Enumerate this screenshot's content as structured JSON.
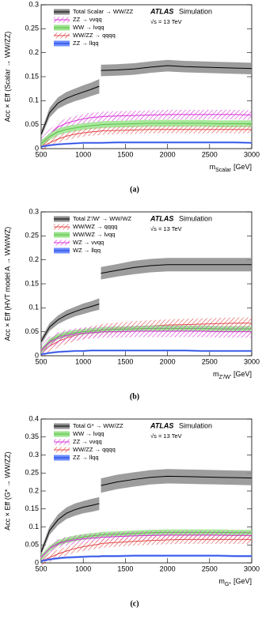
{
  "chart_data": [
    {
      "type": "line",
      "caption": "(a)",
      "ylabel": "Acc × Eff (Scalar → WW/ZZ)",
      "xlabel": "m",
      "xlabel_sub": "Scalar",
      "xlabel_unit": "[GeV]",
      "atlas": "ATLAS",
      "atlas_tag": "Simulation",
      "energy": "√s = 13 TeV",
      "xlim": [
        500,
        3000
      ],
      "xticks": [
        500,
        1000,
        1500,
        2000,
        2500,
        3000
      ],
      "ylim": [
        0,
        0.3
      ],
      "yticks": [
        0,
        0.05,
        0.1,
        0.15,
        0.2,
        0.25,
        0.3
      ],
      "x": [
        500,
        600,
        700,
        800,
        900,
        1000,
        1100,
        1190,
        1200,
        1210,
        1400,
        1600,
        1800,
        2000,
        2200,
        2400,
        2600,
        2800,
        3000
      ],
      "series": [
        {
          "name": "Total Scalar → WW/ZZ",
          "color": "#000000",
          "band_color": "#8c8c8c",
          "hatch": false,
          "values": [
            0.03,
            0.075,
            0.095,
            0.105,
            0.112,
            0.118,
            0.124,
            0.13,
            null,
            0.163,
            0.164,
            0.166,
            0.17,
            0.173,
            0.171,
            0.17,
            0.169,
            0.168,
            0.167
          ],
          "errors": [
            0.006,
            0.01,
            0.012,
            0.013,
            0.013,
            0.014,
            0.014,
            0.015,
            null,
            0.012,
            0.012,
            0.012,
            0.012,
            0.012,
            0.012,
            0.012,
            0.012,
            0.012,
            0.012
          ]
        },
        {
          "name": "ZZ → ννqq",
          "color": "#d633d6",
          "band_color": "#d633d6",
          "hatch": true,
          "values": [
            0.012,
            0.03,
            0.045,
            0.053,
            0.058,
            0.062,
            0.065,
            0.066,
            0.066,
            0.067,
            0.068,
            0.069,
            0.07,
            0.071,
            0.071,
            0.071,
            0.071,
            0.071,
            0.07
          ],
          "errors": [
            0.01,
            0.01,
            0.01,
            0.01,
            0.01,
            0.01,
            0.01,
            0.01,
            0.01,
            0.01,
            0.01,
            0.01,
            0.01,
            0.01,
            0.01,
            0.01,
            0.01,
            0.01,
            0.01
          ]
        },
        {
          "name": "WW → lνqq",
          "color": "#5cc24a",
          "band_color": "#9be38d",
          "hatch": false,
          "values": [
            0.01,
            0.025,
            0.035,
            0.04,
            0.043,
            0.046,
            0.048,
            0.049,
            0.05,
            0.05,
            0.051,
            0.052,
            0.053,
            0.053,
            0.053,
            0.053,
            0.052,
            0.052,
            0.052
          ],
          "errors": [
            0.007,
            0.007,
            0.007,
            0.007,
            0.007,
            0.007,
            0.007,
            0.007,
            0.007,
            0.007,
            0.007,
            0.007,
            0.007,
            0.007,
            0.007,
            0.007,
            0.007,
            0.007,
            0.007
          ]
        },
        {
          "name": "WW/ZZ → qqqq",
          "color": "#e04a4a",
          "band_color": "#e04a4a",
          "hatch": true,
          "values": [
            0.004,
            0.012,
            0.02,
            0.026,
            0.03,
            0.033,
            0.035,
            0.036,
            0.037,
            0.037,
            0.038,
            0.039,
            0.04,
            0.04,
            0.04,
            0.04,
            0.04,
            0.04,
            0.04
          ],
          "errors": [
            0.008,
            0.008,
            0.008,
            0.008,
            0.008,
            0.008,
            0.008,
            0.008,
            0.008,
            0.008,
            0.008,
            0.008,
            0.008,
            0.008,
            0.008,
            0.008,
            0.008,
            0.008,
            0.008
          ]
        },
        {
          "name": "ZZ → llqq",
          "color": "#1f3fd6",
          "band_color": "#6b8cff",
          "hatch": false,
          "values": [
            0.004,
            0.007,
            0.009,
            0.01,
            0.011,
            0.012,
            0.012,
            0.012,
            0.012,
            0.012,
            0.013,
            0.013,
            0.013,
            0.013,
            0.013,
            0.013,
            0.013,
            0.013,
            0.012
          ],
          "errors": [
            0.002,
            0.002,
            0.002,
            0.002,
            0.002,
            0.002,
            0.002,
            0.002,
            0.002,
            0.002,
            0.002,
            0.002,
            0.002,
            0.002,
            0.002,
            0.002,
            0.002,
            0.002,
            0.002
          ]
        }
      ]
    },
    {
      "type": "line",
      "caption": "(b)",
      "ylabel": "Acc × Eff (HVT model A → WW/WZ)",
      "xlabel": "m",
      "xlabel_sub": "Z'/W'",
      "xlabel_unit": "[GeV]",
      "atlas": "ATLAS",
      "atlas_tag": "Simulation",
      "energy": "√s = 13 TeV",
      "xlim": [
        500,
        3000
      ],
      "xticks": [
        500,
        1000,
        1500,
        2000,
        2500,
        3000
      ],
      "ylim": [
        0,
        0.3
      ],
      "yticks": [
        0,
        0.05,
        0.1,
        0.15,
        0.2,
        0.25,
        0.3
      ],
      "x": [
        500,
        600,
        700,
        800,
        900,
        1000,
        1100,
        1190,
        1200,
        1210,
        1400,
        1600,
        1800,
        2000,
        2200,
        2400,
        2600,
        2800,
        3000
      ],
      "series": [
        {
          "name": "Total Z'/W' → WW/WZ",
          "color": "#000000",
          "band_color": "#8c8c8c",
          "hatch": false,
          "values": [
            0.03,
            0.06,
            0.075,
            0.085,
            0.092,
            0.098,
            0.103,
            0.108,
            null,
            0.172,
            0.178,
            0.184,
            0.188,
            0.19,
            0.19,
            0.19,
            0.19,
            0.19,
            0.19
          ],
          "errors": [
            0.006,
            0.008,
            0.009,
            0.01,
            0.01,
            0.011,
            0.011,
            0.012,
            null,
            0.013,
            0.013,
            0.014,
            0.014,
            0.014,
            0.014,
            0.014,
            0.014,
            0.014,
            0.014
          ]
        },
        {
          "name": "WW/WZ → qqqq",
          "color": "#e04a4a",
          "band_color": "#e04a4a",
          "hatch": true,
          "values": [
            0.008,
            0.02,
            0.03,
            0.037,
            0.042,
            0.046,
            0.05,
            0.052,
            0.053,
            0.054,
            0.057,
            0.06,
            0.062,
            0.064,
            0.065,
            0.066,
            0.067,
            0.068,
            0.068
          ],
          "errors": [
            0.012,
            0.012,
            0.012,
            0.012,
            0.012,
            0.012,
            0.012,
            0.012,
            0.012,
            0.012,
            0.012,
            0.012,
            0.012,
            0.012,
            0.012,
            0.012,
            0.012,
            0.012,
            0.012
          ]
        },
        {
          "name": "WW/WZ → lνqq",
          "color": "#5cc24a",
          "band_color": "#9be38d",
          "hatch": false,
          "values": [
            0.01,
            0.03,
            0.04,
            0.045,
            0.048,
            0.05,
            0.052,
            0.053,
            0.053,
            0.054,
            0.055,
            0.056,
            0.057,
            0.057,
            0.057,
            0.057,
            0.056,
            0.056,
            0.056
          ],
          "errors": [
            0.006,
            0.006,
            0.006,
            0.006,
            0.006,
            0.006,
            0.006,
            0.006,
            0.006,
            0.006,
            0.006,
            0.006,
            0.006,
            0.006,
            0.006,
            0.006,
            0.006,
            0.006,
            0.006
          ]
        },
        {
          "name": "WZ → ννqq",
          "color": "#d633d6",
          "band_color": "#d633d6",
          "hatch": true,
          "values": [
            0.01,
            0.028,
            0.037,
            0.042,
            0.045,
            0.047,
            0.048,
            0.049,
            0.049,
            0.05,
            0.05,
            0.051,
            0.051,
            0.051,
            0.051,
            0.051,
            0.05,
            0.05,
            0.05
          ],
          "errors": [
            0.012,
            0.012,
            0.012,
            0.012,
            0.012,
            0.012,
            0.012,
            0.012,
            0.012,
            0.012,
            0.012,
            0.012,
            0.012,
            0.012,
            0.012,
            0.012,
            0.012,
            0.012,
            0.012
          ]
        },
        {
          "name": "WZ → llqq",
          "color": "#1f3fd6",
          "band_color": "#6b8cff",
          "hatch": false,
          "values": [
            0.003,
            0.006,
            0.008,
            0.009,
            0.01,
            0.01,
            0.011,
            0.011,
            0.011,
            0.011,
            0.011,
            0.011,
            0.011,
            0.011,
            0.011,
            0.01,
            0.01,
            0.01,
            0.01
          ],
          "errors": [
            0.002,
            0.002,
            0.002,
            0.002,
            0.002,
            0.002,
            0.002,
            0.002,
            0.002,
            0.002,
            0.002,
            0.002,
            0.002,
            0.002,
            0.002,
            0.002,
            0.002,
            0.002,
            0.002
          ]
        }
      ]
    },
    {
      "type": "line",
      "caption": "(c)",
      "ylabel": "Acc × Eff (G* → WW/ZZ)",
      "xlabel": "m",
      "xlabel_sub": "G*",
      "xlabel_unit": "[GeV]",
      "atlas": "ATLAS",
      "atlas_tag": "Simulation",
      "energy": "√s = 13 TeV",
      "xlim": [
        500,
        3000
      ],
      "xticks": [
        500,
        1000,
        1500,
        2000,
        2500,
        3000
      ],
      "ylim": [
        0,
        0.4
      ],
      "yticks": [
        0,
        0.05,
        0.1,
        0.15,
        0.2,
        0.25,
        0.3,
        0.35,
        0.4
      ],
      "x": [
        500,
        600,
        700,
        800,
        900,
        1000,
        1100,
        1190,
        1200,
        1210,
        1400,
        1600,
        1800,
        2000,
        2200,
        2400,
        2600,
        2800,
        3000
      ],
      "series": [
        {
          "name": "Total G* → WW/ZZ",
          "color": "#000000",
          "band_color": "#8c8c8c",
          "hatch": false,
          "values": [
            0.03,
            0.09,
            0.12,
            0.138,
            0.148,
            0.155,
            0.16,
            0.165,
            null,
            0.215,
            0.225,
            0.232,
            0.238,
            0.241,
            0.24,
            0.239,
            0.238,
            0.237,
            0.236
          ],
          "errors": [
            0.008,
            0.012,
            0.015,
            0.016,
            0.017,
            0.017,
            0.018,
            0.018,
            null,
            0.02,
            0.02,
            0.02,
            0.02,
            0.02,
            0.02,
            0.02,
            0.02,
            0.02,
            0.02
          ]
        },
        {
          "name": "WW → lνqq",
          "color": "#5cc24a",
          "band_color": "#9be38d",
          "hatch": false,
          "values": [
            0.015,
            0.04,
            0.055,
            0.063,
            0.068,
            0.072,
            0.075,
            0.077,
            0.078,
            0.078,
            0.08,
            0.082,
            0.084,
            0.085,
            0.085,
            0.085,
            0.085,
            0.084,
            0.084
          ],
          "errors": [
            0.008,
            0.008,
            0.008,
            0.008,
            0.008,
            0.008,
            0.008,
            0.008,
            0.008,
            0.008,
            0.008,
            0.008,
            0.008,
            0.008,
            0.008,
            0.008,
            0.008,
            0.008,
            0.008
          ]
        },
        {
          "name": "ZZ → ννqq",
          "color": "#d633d6",
          "band_color": "#d633d6",
          "hatch": true,
          "values": [
            0.015,
            0.04,
            0.053,
            0.06,
            0.064,
            0.067,
            0.069,
            0.07,
            0.071,
            0.071,
            0.073,
            0.075,
            0.076,
            0.077,
            0.077,
            0.077,
            0.077,
            0.076,
            0.076
          ],
          "errors": [
            0.012,
            0.012,
            0.012,
            0.012,
            0.012,
            0.012,
            0.012,
            0.012,
            0.012,
            0.012,
            0.012,
            0.012,
            0.012,
            0.012,
            0.012,
            0.012,
            0.012,
            0.012,
            0.012
          ]
        },
        {
          "name": "WW/ZZ → qqqq",
          "color": "#e04a4a",
          "band_color": "#e04a4a",
          "hatch": true,
          "values": [
            0.005,
            0.015,
            0.025,
            0.033,
            0.04,
            0.045,
            0.049,
            0.052,
            0.053,
            0.054,
            0.057,
            0.06,
            0.062,
            0.064,
            0.065,
            0.065,
            0.065,
            0.065,
            0.065
          ],
          "errors": [
            0.012,
            0.012,
            0.012,
            0.012,
            0.012,
            0.012,
            0.012,
            0.012,
            0.012,
            0.012,
            0.012,
            0.012,
            0.012,
            0.012,
            0.012,
            0.012,
            0.012,
            0.012,
            0.012
          ]
        },
        {
          "name": "ZZ → llqq",
          "color": "#1f3fd6",
          "band_color": "#6b8cff",
          "hatch": false,
          "values": [
            0.005,
            0.01,
            0.013,
            0.015,
            0.016,
            0.017,
            0.018,
            0.018,
            0.018,
            0.019,
            0.019,
            0.02,
            0.02,
            0.02,
            0.02,
            0.02,
            0.02,
            0.019,
            0.019
          ],
          "errors": [
            0.003,
            0.003,
            0.003,
            0.003,
            0.003,
            0.003,
            0.003,
            0.003,
            0.003,
            0.003,
            0.003,
            0.003,
            0.003,
            0.003,
            0.003,
            0.003,
            0.003,
            0.003,
            0.003
          ]
        }
      ]
    }
  ]
}
